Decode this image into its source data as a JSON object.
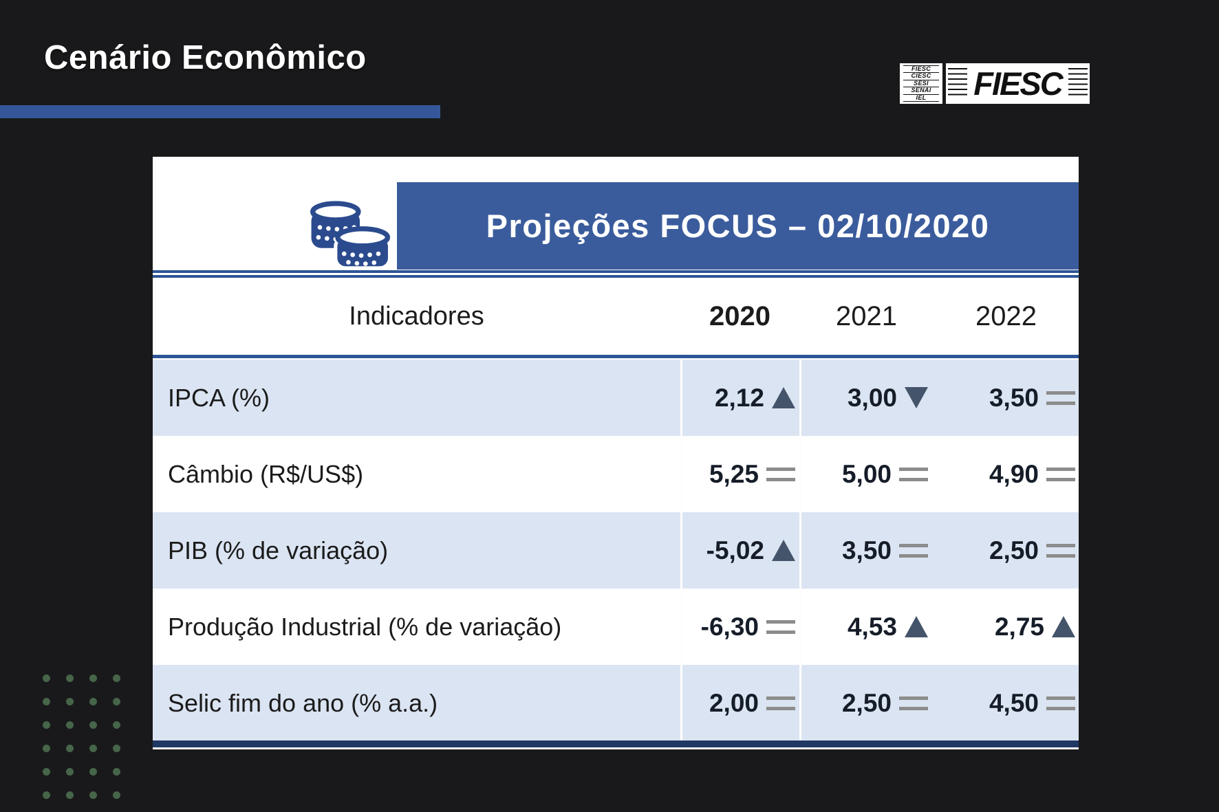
{
  "slide": {
    "title": "Cenário Econômico"
  },
  "logo": {
    "main": "FIESC",
    "entities": [
      "FIESC",
      "CIESC",
      "SESI",
      "SENAI",
      "IEL"
    ]
  },
  "table": {
    "title": "Projeções FOCUS – 02/10/2020",
    "columns": {
      "indicator": "Indicadores",
      "years": [
        "2020",
        "2021",
        "2022"
      ]
    },
    "rows": [
      {
        "label": "IPCA (%)",
        "values": [
          "2,12",
          "3,00",
          "3,50"
        ],
        "trends": [
          "up",
          "down",
          "equal"
        ]
      },
      {
        "label": "Câmbio (R$/US$)",
        "values": [
          "5,25",
          "5,00",
          "4,90"
        ],
        "trends": [
          "equal",
          "equal",
          "equal"
        ]
      },
      {
        "label": "PIB (% de variação)",
        "values": [
          "-5,02",
          "3,50",
          "2,50"
        ],
        "trends": [
          "up",
          "equal",
          "equal"
        ]
      },
      {
        "label": "Produção Industrial (% de variação)",
        "values": [
          "-6,30",
          "4,53",
          "2,75"
        ],
        "trends": [
          "equal",
          "up",
          "up"
        ]
      },
      {
        "label": "Selic fim do ano (% a.a.)",
        "values": [
          "2,00",
          "2,50",
          "4,50"
        ],
        "trends": [
          "equal",
          "equal",
          "equal"
        ]
      }
    ]
  },
  "chart_data": {
    "type": "table",
    "title": "Projeções FOCUS – 02/10/2020",
    "columns": [
      "Indicadores",
      "2020",
      "2021",
      "2022"
    ],
    "rows": [
      [
        "IPCA (%)",
        2.12,
        3.0,
        3.5
      ],
      [
        "Câmbio (R$/US$)",
        5.25,
        5.0,
        4.9
      ],
      [
        "PIB (% de variação)",
        -5.02,
        3.5,
        2.5
      ],
      [
        "Produção Industrial (% de variação)",
        -6.3,
        4.53,
        2.75
      ],
      [
        "Selic fim do ano (% a.a.)",
        2.0,
        2.5,
        4.5
      ]
    ],
    "trend_symbols": [
      [
        "up",
        "down",
        "equal"
      ],
      [
        "equal",
        "equal",
        "equal"
      ],
      [
        "up",
        "equal",
        "equal"
      ],
      [
        "equal",
        "up",
        "up"
      ],
      [
        "equal",
        "equal",
        "equal"
      ]
    ]
  },
  "colors": {
    "background": "#19191b",
    "accent_blue": "#35579a",
    "band_blue": "#3b5c9c",
    "row_highlight": "#dbe4f2",
    "rule_blue": "#2e5597",
    "bottom_border_navy": "#1f3864",
    "trend_arrow": "#44546a",
    "trend_equal": "#8c8c8c",
    "dot_green": "#466549",
    "coin_blue": "#2b4b8e"
  },
  "decor": {
    "dot_grid": {
      "rows": 6,
      "cols": 4
    }
  }
}
